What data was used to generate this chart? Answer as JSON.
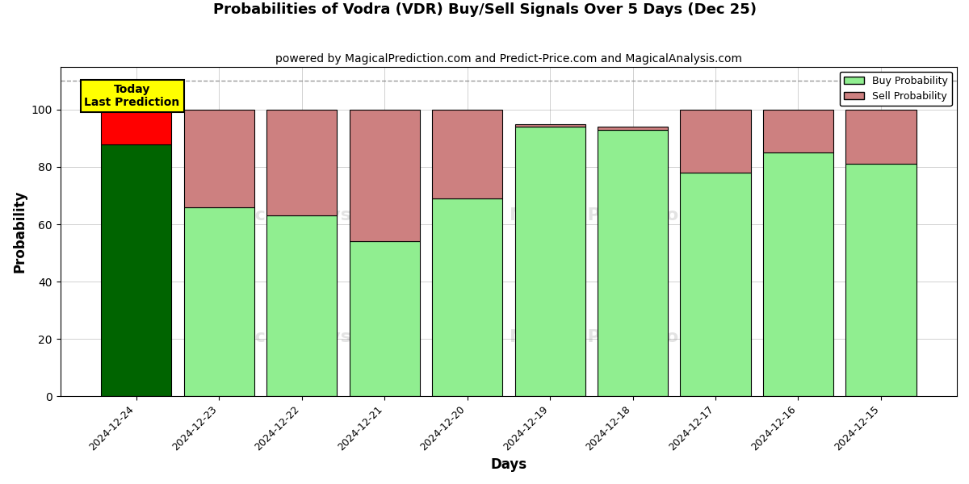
{
  "title": "Probabilities of Vodra (VDR) Buy/Sell Signals Over 5 Days (Dec 25)",
  "subtitle": "powered by MagicalPrediction.com and Predict-Price.com and MagicalAnalysis.com",
  "xlabel": "Days",
  "ylabel": "Probability",
  "dates": [
    "2024-12-24",
    "2024-12-23",
    "2024-12-22",
    "2024-12-21",
    "2024-12-20",
    "2024-12-19",
    "2024-12-18",
    "2024-12-17",
    "2024-12-16",
    "2024-12-15"
  ],
  "buy_values": [
    88,
    66,
    63,
    54,
    69,
    94,
    93,
    78,
    85,
    81
  ],
  "sell_values": [
    12,
    34,
    37,
    46,
    31,
    1,
    1,
    22,
    15,
    19
  ],
  "today_buy_color": "#006400",
  "today_sell_color": "#ff0000",
  "buy_color": "#90EE90",
  "sell_color": "#CD8080",
  "today_annotation_bg": "#ffff00",
  "today_annotation_text": "Today\nLast Prediction",
  "ylim": [
    0,
    115
  ],
  "dashed_line_y": 110,
  "legend_buy_label": "Buy Probability",
  "legend_sell_label": "Sell Probability",
  "bar_edge_color": "#000000",
  "bar_linewidth": 0.8,
  "yticks": [
    0,
    20,
    40,
    60,
    80,
    100
  ],
  "bar_width": 0.85,
  "title_fontsize": 13,
  "subtitle_fontsize": 10,
  "annotation_fontsize": 10
}
